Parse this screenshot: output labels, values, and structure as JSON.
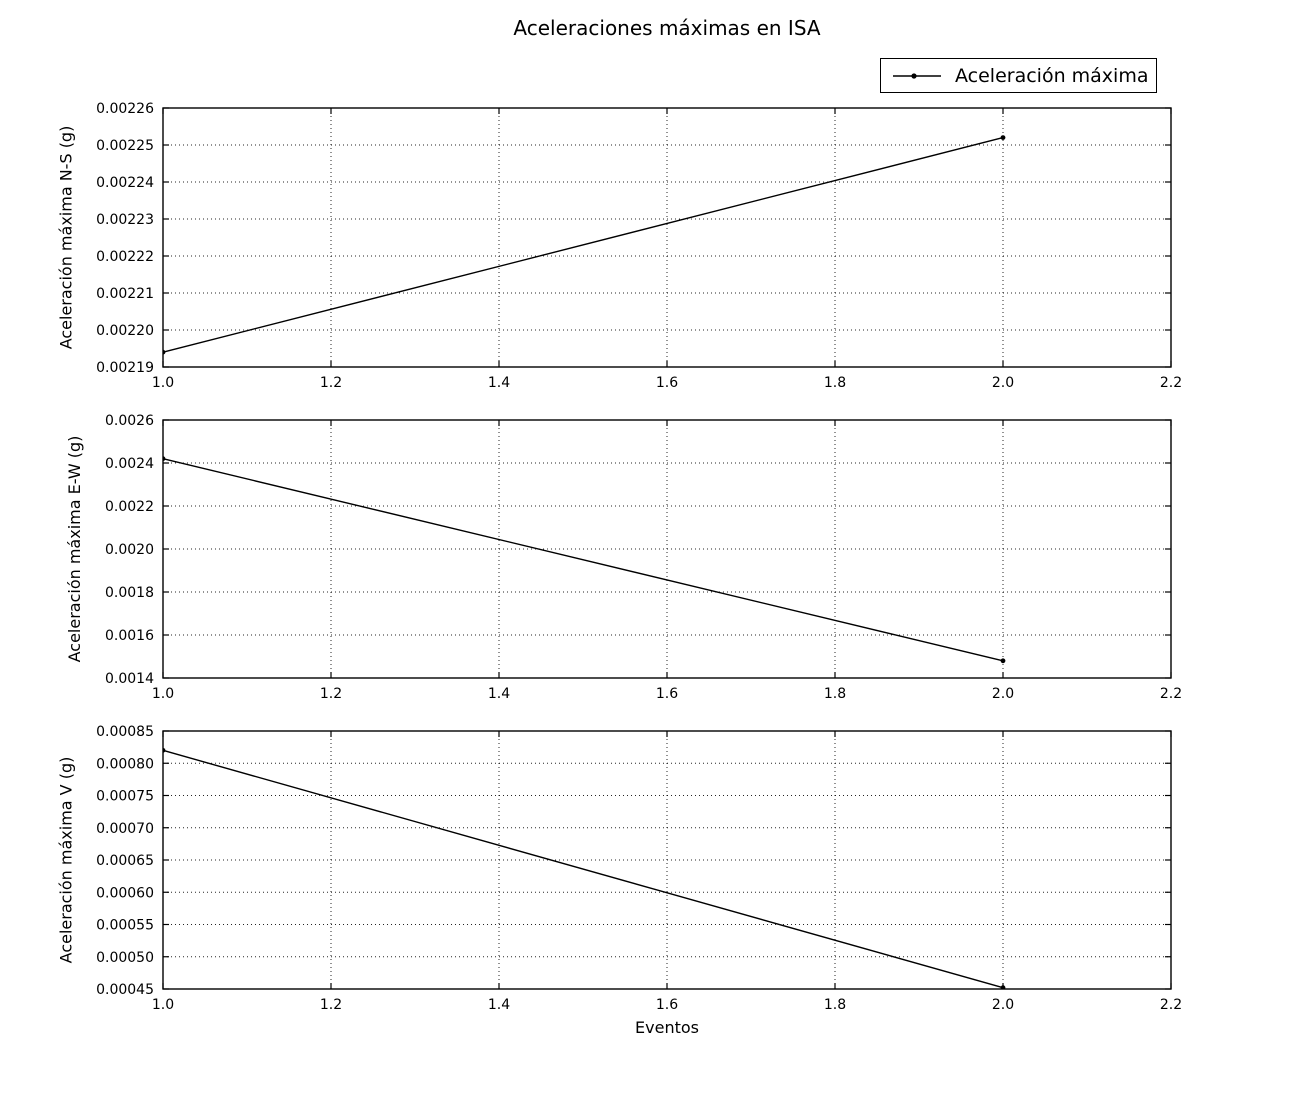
{
  "figure": {
    "title": "Aceleraciones máximas en ISA",
    "xlabel": "Eventos",
    "legend": {
      "label": "Aceleración máxima",
      "marker": "dot-on-line"
    },
    "colors": {
      "line": "#000000",
      "marker": "#000000",
      "grid": "#000000",
      "frame": "#000000",
      "background": "#ffffff"
    }
  },
  "chart_data": [
    {
      "type": "line",
      "series_name": "Aceleración máxima",
      "ylabel": "Aceleración máxima N-S (g)",
      "xlabel": "",
      "x": [
        1.0,
        2.0
      ],
      "y": [
        0.002194,
        0.002252
      ],
      "xlim": [
        1.0,
        2.2
      ],
      "ylim": [
        0.00219,
        0.00226
      ],
      "xticks": [
        1.0,
        1.2,
        1.4,
        1.6,
        1.8,
        2.0,
        2.2
      ],
      "yticks": [
        0.00219,
        0.0022,
        0.00221,
        0.00222,
        0.00223,
        0.00224,
        0.00225,
        0.00226
      ],
      "xtick_decimals": 1,
      "ytick_decimals": 5,
      "grid": true,
      "legend_position": "upper-right-above-axes"
    },
    {
      "type": "line",
      "series_name": "Aceleración máxima",
      "ylabel": "Aceleración máxima E-W (g)",
      "xlabel": "",
      "x": [
        1.0,
        2.0
      ],
      "y": [
        0.00242,
        0.00148
      ],
      "xlim": [
        1.0,
        2.2
      ],
      "ylim": [
        0.0014,
        0.0026
      ],
      "xticks": [
        1.0,
        1.2,
        1.4,
        1.6,
        1.8,
        2.0,
        2.2
      ],
      "yticks": [
        0.0014,
        0.0016,
        0.0018,
        0.002,
        0.0022,
        0.0024,
        0.0026
      ],
      "xtick_decimals": 1,
      "ytick_decimals": 4,
      "grid": true
    },
    {
      "type": "line",
      "series_name": "Aceleración máxima",
      "ylabel": "Aceleración máxima V (g)",
      "xlabel": "Eventos",
      "x": [
        1.0,
        2.0
      ],
      "y": [
        0.00082,
        0.000452
      ],
      "xlim": [
        1.0,
        2.2
      ],
      "ylim": [
        0.00045,
        0.00085
      ],
      "xticks": [
        1.0,
        1.2,
        1.4,
        1.6,
        1.8,
        2.0,
        2.2
      ],
      "yticks": [
        0.00045,
        0.0005,
        0.00055,
        0.0006,
        0.00065,
        0.0007,
        0.00075,
        0.0008,
        0.00085
      ],
      "xtick_decimals": 1,
      "ytick_decimals": 5,
      "grid": true
    }
  ]
}
